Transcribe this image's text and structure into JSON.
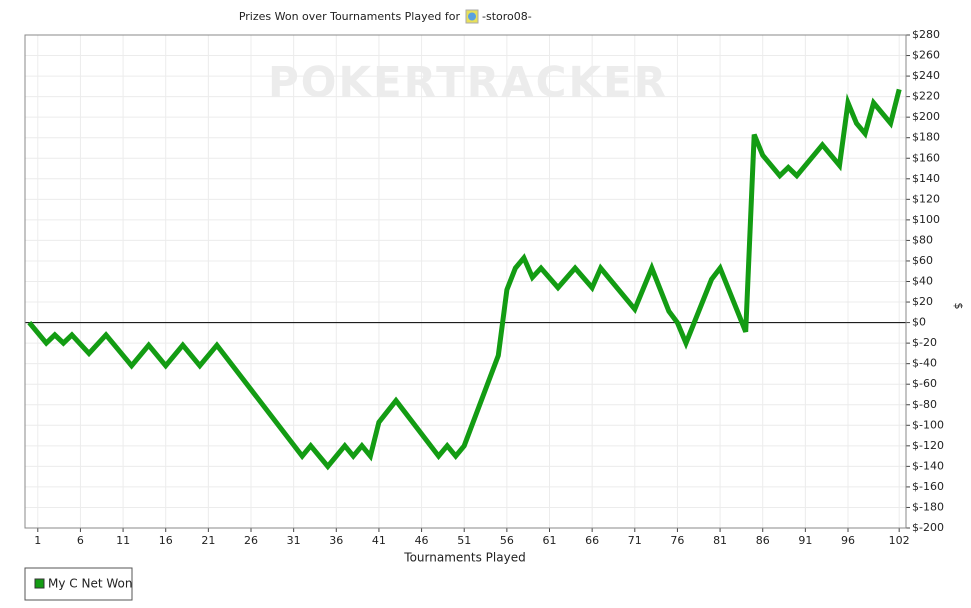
{
  "chart_data": {
    "type": "line",
    "title": "Prizes Won over Tournaments Played for",
    "player": "-storo08-",
    "watermark": "POKERTRACKER",
    "x_label": "Tournaments Played",
    "y_label": "$",
    "xlim": [
      -0.5,
      102.8
    ],
    "ylim": [
      -200,
      280
    ],
    "xticks": [
      1,
      6,
      11,
      16,
      21,
      26,
      31,
      36,
      41,
      46,
      51,
      56,
      61,
      66,
      71,
      76,
      81,
      86,
      91,
      96,
      102
    ],
    "yticks": [
      {
        "value": -200,
        "label": "$-200"
      },
      {
        "value": -180,
        "label": "$-180"
      },
      {
        "value": -160,
        "label": "$-160"
      },
      {
        "value": -140,
        "label": "$-140"
      },
      {
        "value": -120,
        "label": "$-120"
      },
      {
        "value": -100,
        "label": "$-100"
      },
      {
        "value": -80,
        "label": "$-80"
      },
      {
        "value": -60,
        "label": "$-60"
      },
      {
        "value": -40,
        "label": "$-40"
      },
      {
        "value": -20,
        "label": "$-20"
      },
      {
        "value": 0,
        "label": "$0"
      },
      {
        "value": 20,
        "label": "$20"
      },
      {
        "value": 40,
        "label": "$40"
      },
      {
        "value": 60,
        "label": "$60"
      },
      {
        "value": 80,
        "label": "$80"
      },
      {
        "value": 100,
        "label": "$100"
      },
      {
        "value": 120,
        "label": "$120"
      },
      {
        "value": 140,
        "label": "$140"
      },
      {
        "value": 160,
        "label": "$160"
      },
      {
        "value": 180,
        "label": "$180"
      },
      {
        "value": 200,
        "label": "$200"
      },
      {
        "value": 220,
        "label": "$220"
      },
      {
        "value": 240,
        "label": "$240"
      },
      {
        "value": 260,
        "label": "$260"
      },
      {
        "value": 280,
        "label": "$280"
      }
    ],
    "grid": true,
    "x": [
      0,
      2,
      3,
      4,
      5,
      7,
      9,
      12,
      14,
      16,
      18,
      20,
      22,
      32,
      33,
      35,
      37,
      38,
      39,
      40,
      41,
      43,
      48,
      49,
      50,
      51,
      55,
      56,
      57,
      58,
      59,
      60,
      62,
      64,
      66,
      67,
      71,
      73,
      75,
      76,
      77,
      80,
      81,
      84,
      85,
      86,
      88,
      89,
      90,
      93,
      95,
      96,
      97,
      98,
      99,
      101,
      102
    ],
    "series": [
      {
        "name": "My C Net Won",
        "color": "#139c13",
        "values": [
          0,
          -20,
          -12,
          -20,
          -12,
          -30,
          -12,
          -42,
          -22,
          -42,
          -22,
          -42,
          -22,
          -130,
          -120,
          -140,
          -120,
          -130,
          -120,
          -130,
          -97,
          -76,
          -130,
          -120,
          -130,
          -120,
          -32,
          32,
          53,
          63,
          44,
          53,
          34,
          53,
          34,
          53,
          13,
          53,
          11,
          0,
          -20,
          42,
          53,
          -9,
          183,
          163,
          143,
          151,
          143,
          173,
          153,
          214,
          194,
          184,
          214,
          194,
          227
        ]
      }
    ]
  }
}
